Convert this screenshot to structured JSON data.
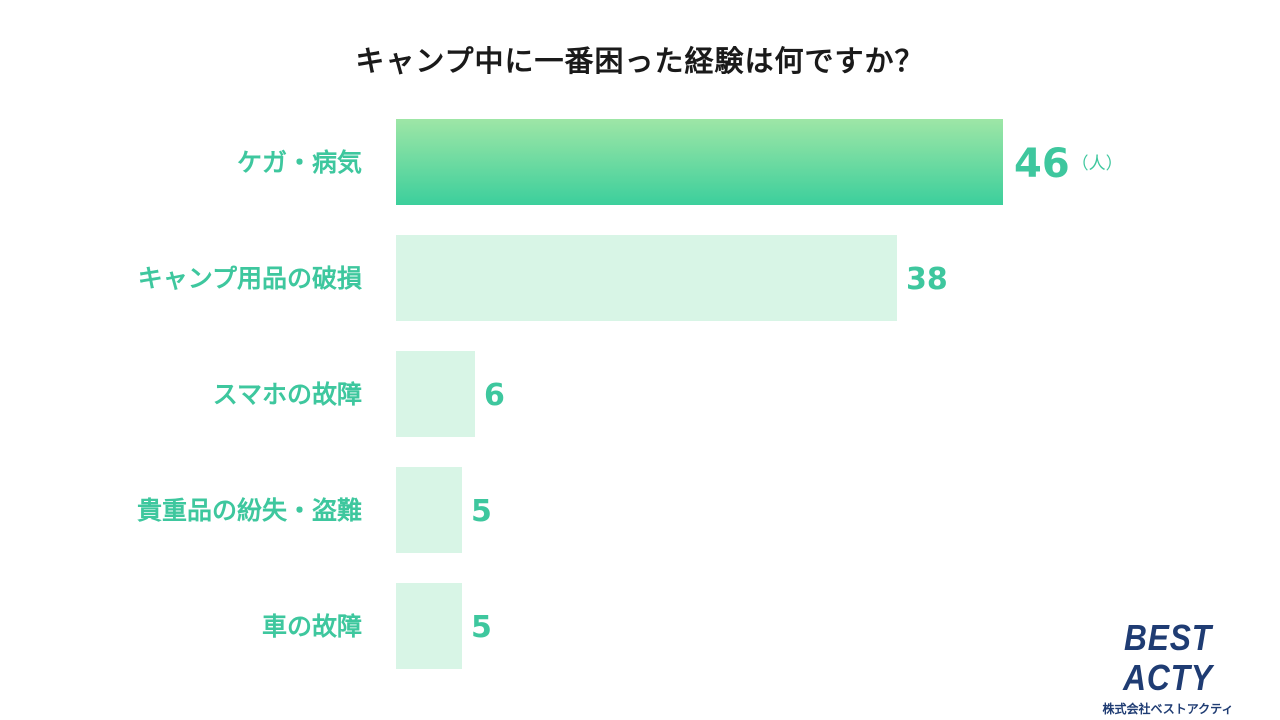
{
  "chart_data": {
    "type": "bar",
    "orientation": "horizontal",
    "title": "キャンプ中に一番困った経験は何ですか？",
    "categories": [
      "ケガ・病気",
      "キャンプ用品の破損",
      "スマホの故障",
      "貴重品の紛失・盗難",
      "車の故障"
    ],
    "values": [
      46,
      38,
      6,
      5,
      5
    ],
    "unit": "（人）",
    "xlim": [
      0,
      46
    ],
    "grid": false,
    "legend": "none",
    "highlight_index": 0
  },
  "colors": {
    "highlight_top": "#9ee6a6",
    "highlight_bottom": "#3ccf9c",
    "bar": "#d8f5e6",
    "label": "#3ec79e",
    "title": "#1a1a1a",
    "logo": "#1f3c73"
  },
  "logo": {
    "main": "BEST ACTY",
    "sub": "株式会社ベストアクティ"
  }
}
